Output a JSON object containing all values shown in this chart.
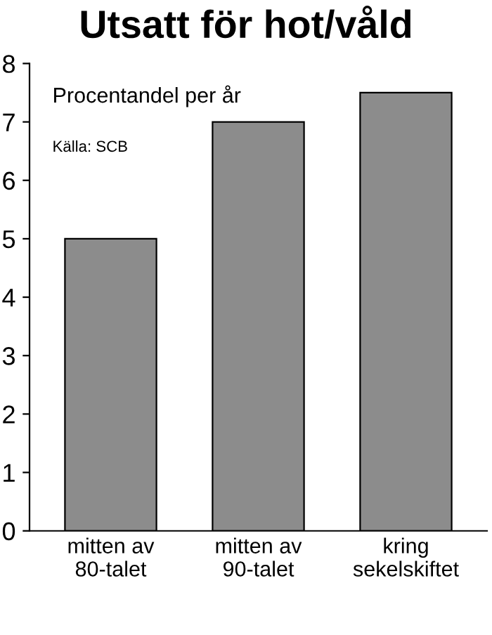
{
  "chart_data": {
    "type": "bar",
    "title": "Utsatt för hot/våld",
    "categories": [
      "mitten av\n80-talet",
      "mitten av\n90-talet",
      "kring\nsekelskiftet"
    ],
    "values": [
      5,
      7,
      7.5
    ],
    "color": "#8c8c8c",
    "ylim": [
      0,
      8
    ],
    "yticks": [
      0,
      1,
      2,
      3,
      4,
      5,
      6,
      7,
      8
    ],
    "grid": false,
    "annotations": [
      "Procentandel per år",
      "Källa: SCB"
    ]
  }
}
